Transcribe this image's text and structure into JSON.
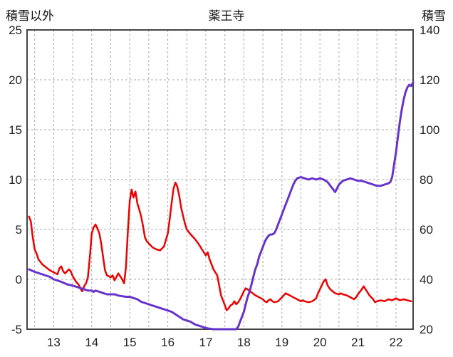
{
  "header": {
    "left_axis_title": "積雪以外",
    "title": "薬王寺",
    "right_axis_title": "積雪"
  },
  "colors": {
    "grid": "#aaaaaa",
    "border": "#444444",
    "tick_text": "#222222",
    "red_line": "#ee0000",
    "purple_line": "#6633cc",
    "background": "#ffffff"
  },
  "chart_data": {
    "type": "line",
    "title": "薬王寺",
    "grid": true,
    "legend": "none",
    "x_axis": {
      "min": 12.3,
      "max": 22.45,
      "ticks": [
        13,
        14,
        15,
        16,
        17,
        18,
        19,
        20,
        21,
        22
      ],
      "gridline_step": 0.5
    },
    "left_axis": {
      "label": "積雪以外",
      "min": -5,
      "max": 25,
      "ticks": [
        25,
        20,
        15,
        10,
        5,
        0,
        -5
      ]
    },
    "right_axis": {
      "label": "積雪",
      "min": 20,
      "max": 140,
      "ticks": [
        140,
        120,
        100,
        80,
        60,
        40,
        20
      ]
    },
    "series": [
      {
        "name": "積雪以外",
        "axis": "left",
        "color": "#ee0000",
        "width": 2.5,
        "points": [
          [
            12.35,
            6.3
          ],
          [
            12.4,
            5.8
          ],
          [
            12.45,
            4.2
          ],
          [
            12.5,
            3.0
          ],
          [
            12.55,
            2.6
          ],
          [
            12.6,
            2.0
          ],
          [
            12.7,
            1.5
          ],
          [
            12.8,
            1.2
          ],
          [
            12.9,
            0.9
          ],
          [
            13.0,
            0.7
          ],
          [
            13.1,
            0.5
          ],
          [
            13.15,
            1.1
          ],
          [
            13.2,
            1.3
          ],
          [
            13.25,
            0.8
          ],
          [
            13.3,
            0.6
          ],
          [
            13.4,
            1.0
          ],
          [
            13.45,
            0.8
          ],
          [
            13.5,
            0.3
          ],
          [
            13.55,
            0.0
          ],
          [
            13.6,
            -0.3
          ],
          [
            13.65,
            -0.5
          ],
          [
            13.7,
            -0.9
          ],
          [
            13.75,
            -1.2
          ],
          [
            13.8,
            -0.7
          ],
          [
            13.85,
            -0.4
          ],
          [
            13.9,
            0.2
          ],
          [
            13.95,
            2.2
          ],
          [
            14.0,
            4.6
          ],
          [
            14.05,
            5.2
          ],
          [
            14.1,
            5.5
          ],
          [
            14.15,
            5.1
          ],
          [
            14.2,
            4.6
          ],
          [
            14.25,
            3.6
          ],
          [
            14.3,
            2.2
          ],
          [
            14.35,
            0.9
          ],
          [
            14.4,
            0.4
          ],
          [
            14.5,
            0.2
          ],
          [
            14.55,
            0.4
          ],
          [
            14.6,
            -0.1
          ],
          [
            14.7,
            0.6
          ],
          [
            14.75,
            0.3
          ],
          [
            14.8,
            0.0
          ],
          [
            14.85,
            -0.4
          ],
          [
            14.9,
            1.2
          ],
          [
            14.95,
            4.8
          ],
          [
            15.0,
            7.9
          ],
          [
            15.05,
            9.0
          ],
          [
            15.1,
            8.2
          ],
          [
            15.15,
            8.8
          ],
          [
            15.2,
            7.6
          ],
          [
            15.25,
            7.0
          ],
          [
            15.3,
            6.3
          ],
          [
            15.35,
            5.3
          ],
          [
            15.4,
            4.2
          ],
          [
            15.45,
            3.8
          ],
          [
            15.5,
            3.6
          ],
          [
            15.6,
            3.2
          ],
          [
            15.7,
            3.0
          ],
          [
            15.8,
            2.9
          ],
          [
            15.9,
            3.3
          ],
          [
            16.0,
            4.6
          ],
          [
            16.05,
            6.0
          ],
          [
            16.1,
            7.6
          ],
          [
            16.15,
            9.1
          ],
          [
            16.2,
            9.7
          ],
          [
            16.25,
            9.3
          ],
          [
            16.3,
            8.4
          ],
          [
            16.35,
            7.2
          ],
          [
            16.4,
            6.4
          ],
          [
            16.45,
            5.6
          ],
          [
            16.5,
            5.0
          ],
          [
            16.6,
            4.5
          ],
          [
            16.7,
            4.1
          ],
          [
            16.8,
            3.6
          ],
          [
            16.9,
            3.0
          ],
          [
            17.0,
            2.4
          ],
          [
            17.05,
            2.7
          ],
          [
            17.1,
            2.0
          ],
          [
            17.15,
            1.5
          ],
          [
            17.2,
            1.0
          ],
          [
            17.3,
            0.4
          ],
          [
            17.35,
            -0.6
          ],
          [
            17.4,
            -1.6
          ],
          [
            17.45,
            -2.1
          ],
          [
            17.5,
            -2.6
          ],
          [
            17.55,
            -3.1
          ],
          [
            17.6,
            -2.9
          ],
          [
            17.65,
            -2.6
          ],
          [
            17.7,
            -2.5
          ],
          [
            17.75,
            -2.2
          ],
          [
            17.8,
            -2.5
          ],
          [
            17.85,
            -2.3
          ],
          [
            17.9,
            -2.0
          ],
          [
            17.95,
            -1.6
          ],
          [
            18.0,
            -1.2
          ],
          [
            18.05,
            -0.9
          ],
          [
            18.1,
            -1.0
          ],
          [
            18.15,
            -1.2
          ],
          [
            18.2,
            -1.3
          ],
          [
            18.3,
            -1.6
          ],
          [
            18.4,
            -1.8
          ],
          [
            18.5,
            -2.0
          ],
          [
            18.55,
            -2.2
          ],
          [
            18.6,
            -2.3
          ],
          [
            18.65,
            -2.1
          ],
          [
            18.7,
            -2.0
          ],
          [
            18.75,
            -2.2
          ],
          [
            18.8,
            -2.3
          ],
          [
            18.9,
            -2.2
          ],
          [
            19.0,
            -1.8
          ],
          [
            19.05,
            -1.6
          ],
          [
            19.1,
            -1.4
          ],
          [
            19.15,
            -1.5
          ],
          [
            19.2,
            -1.6
          ],
          [
            19.3,
            -1.8
          ],
          [
            19.4,
            -2.0
          ],
          [
            19.5,
            -2.2
          ],
          [
            19.55,
            -2.1
          ],
          [
            19.6,
            -2.2
          ],
          [
            19.7,
            -2.3
          ],
          [
            19.8,
            -2.2
          ],
          [
            19.9,
            -1.9
          ],
          [
            19.95,
            -1.4
          ],
          [
            20.0,
            -1.0
          ],
          [
            20.05,
            -0.6
          ],
          [
            20.1,
            -0.2
          ],
          [
            20.15,
            0.0
          ],
          [
            20.2,
            -0.6
          ],
          [
            20.25,
            -0.9
          ],
          [
            20.3,
            -1.1
          ],
          [
            20.4,
            -1.4
          ],
          [
            20.5,
            -1.5
          ],
          [
            20.55,
            -1.4
          ],
          [
            20.6,
            -1.5
          ],
          [
            20.7,
            -1.6
          ],
          [
            20.8,
            -1.8
          ],
          [
            20.9,
            -2.0
          ],
          [
            20.95,
            -1.8
          ],
          [
            21.0,
            -1.5
          ],
          [
            21.1,
            -1.0
          ],
          [
            21.15,
            -0.7
          ],
          [
            21.2,
            -1.0
          ],
          [
            21.3,
            -1.6
          ],
          [
            21.4,
            -2.0
          ],
          [
            21.45,
            -2.3
          ],
          [
            21.5,
            -2.2
          ],
          [
            21.6,
            -2.1
          ],
          [
            21.7,
            -2.2
          ],
          [
            21.8,
            -2.0
          ],
          [
            21.9,
            -2.1
          ],
          [
            22.0,
            -1.9
          ],
          [
            22.05,
            -2.0
          ],
          [
            22.1,
            -2.1
          ],
          [
            22.2,
            -2.0
          ],
          [
            22.3,
            -2.1
          ],
          [
            22.4,
            -2.2
          ]
        ]
      },
      {
        "name": "積雪",
        "axis": "right",
        "color": "#6633cc",
        "width": 3,
        "points": [
          [
            12.35,
            44
          ],
          [
            12.5,
            43
          ],
          [
            12.7,
            42
          ],
          [
            12.9,
            41
          ],
          [
            13.0,
            40
          ],
          [
            13.2,
            39
          ],
          [
            13.35,
            38
          ],
          [
            13.5,
            37.5
          ],
          [
            13.6,
            37
          ],
          [
            13.7,
            36.5
          ],
          [
            13.8,
            36
          ],
          [
            13.9,
            35.5
          ],
          [
            14.0,
            35.5
          ],
          [
            14.05,
            35
          ],
          [
            14.1,
            35.5
          ],
          [
            14.2,
            35
          ],
          [
            14.3,
            34.5
          ],
          [
            14.4,
            34
          ],
          [
            14.6,
            34
          ],
          [
            14.7,
            33.5
          ],
          [
            14.9,
            33
          ],
          [
            15.0,
            33
          ],
          [
            15.1,
            32.5
          ],
          [
            15.2,
            32
          ],
          [
            15.3,
            31
          ],
          [
            15.5,
            30
          ],
          [
            15.6,
            29.5
          ],
          [
            15.7,
            29
          ],
          [
            15.8,
            28.5
          ],
          [
            15.9,
            28
          ],
          [
            16.0,
            27.5
          ],
          [
            16.1,
            27
          ],
          [
            16.2,
            26
          ],
          [
            16.3,
            25
          ],
          [
            16.4,
            24
          ],
          [
            16.5,
            23.5
          ],
          [
            16.6,
            23
          ],
          [
            16.7,
            22
          ],
          [
            16.8,
            21.5
          ],
          [
            16.9,
            21
          ],
          [
            17.0,
            20.5
          ],
          [
            17.1,
            20.2
          ],
          [
            17.2,
            20
          ],
          [
            17.4,
            20
          ],
          [
            17.6,
            20
          ],
          [
            17.8,
            20
          ],
          [
            17.85,
            21
          ],
          [
            17.9,
            23
          ],
          [
            18.0,
            27
          ],
          [
            18.05,
            30
          ],
          [
            18.1,
            33
          ],
          [
            18.15,
            35
          ],
          [
            18.2,
            38
          ],
          [
            18.25,
            41
          ],
          [
            18.3,
            44
          ],
          [
            18.35,
            46
          ],
          [
            18.4,
            49
          ],
          [
            18.45,
            51
          ],
          [
            18.5,
            53
          ],
          [
            18.55,
            55
          ],
          [
            18.6,
            56.5
          ],
          [
            18.65,
            57.5
          ],
          [
            18.7,
            58
          ],
          [
            18.75,
            58
          ],
          [
            18.8,
            58.5
          ],
          [
            18.85,
            60
          ],
          [
            18.9,
            62
          ],
          [
            18.95,
            64
          ],
          [
            19.0,
            66
          ],
          [
            19.05,
            68
          ],
          [
            19.1,
            70
          ],
          [
            19.15,
            72
          ],
          [
            19.2,
            74
          ],
          [
            19.25,
            76
          ],
          [
            19.3,
            78
          ],
          [
            19.35,
            79.5
          ],
          [
            19.4,
            80.5
          ],
          [
            19.5,
            81
          ],
          [
            19.6,
            80.5
          ],
          [
            19.7,
            80
          ],
          [
            19.8,
            80.5
          ],
          [
            19.9,
            80
          ],
          [
            20.0,
            80.5
          ],
          [
            20.1,
            80
          ],
          [
            20.2,
            79
          ],
          [
            20.3,
            77
          ],
          [
            20.35,
            76
          ],
          [
            20.4,
            75
          ],
          [
            20.45,
            76.5
          ],
          [
            20.5,
            78
          ],
          [
            20.6,
            79.5
          ],
          [
            20.7,
            80
          ],
          [
            20.8,
            80.5
          ],
          [
            20.9,
            80
          ],
          [
            21.0,
            79.5
          ],
          [
            21.1,
            79.5
          ],
          [
            21.2,
            79
          ],
          [
            21.3,
            78.5
          ],
          [
            21.4,
            78
          ],
          [
            21.5,
            77.5
          ],
          [
            21.6,
            77.5
          ],
          [
            21.7,
            78
          ],
          [
            21.8,
            78.5
          ],
          [
            21.85,
            79
          ],
          [
            21.9,
            81
          ],
          [
            21.95,
            86
          ],
          [
            22.0,
            91
          ],
          [
            22.05,
            97
          ],
          [
            22.1,
            103
          ],
          [
            22.15,
            108
          ],
          [
            22.2,
            112
          ],
          [
            22.25,
            115
          ],
          [
            22.3,
            117
          ],
          [
            22.35,
            118
          ],
          [
            22.4,
            117.5
          ],
          [
            22.45,
            119
          ]
        ]
      }
    ]
  }
}
